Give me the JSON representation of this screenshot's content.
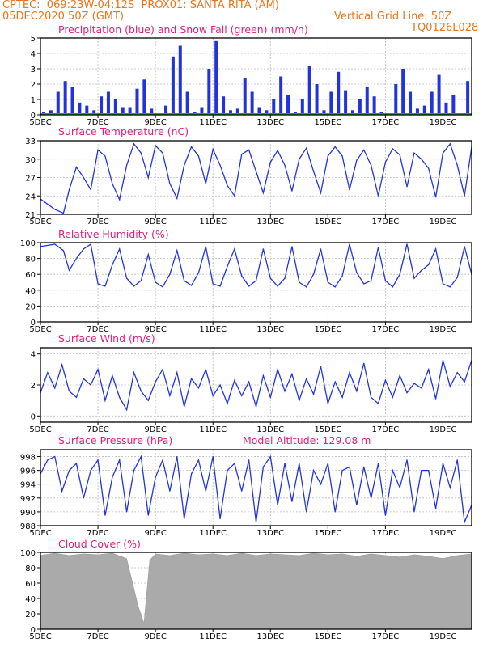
{
  "header": {
    "line1": "CPTEC:  069:23W-04:12S  PROX01: SANTA RITA (AM)",
    "line2_left": "05DEC2020 50Z (GMT)",
    "line2_right": "Vertical Grid Line: 50Z",
    "line3_right": "TQ0126L028"
  },
  "x_labels": [
    "5DEC",
    "7DEC",
    "9DEC",
    "11DEC",
    "13DEC",
    "15DEC",
    "17DEC",
    "19DEC"
  ],
  "colors": {
    "line": "#2233dd",
    "snow": "#22aa22",
    "cloud": "#aaaaaa",
    "title": "#e0207a",
    "header": "#e8751a"
  },
  "chart_data": [
    {
      "type": "bar",
      "id": "precip",
      "title": "Precipitation (blue) and Snow Fall (green) (mm/h)",
      "ylim": [
        0,
        5
      ],
      "yticks": [
        0,
        1,
        2,
        3,
        4,
        5
      ],
      "x_days": [
        0,
        0.25,
        0.5,
        0.75,
        1,
        1.25,
        1.5,
        1.75,
        2,
        2.25,
        2.5,
        2.75,
        3,
        3.25,
        3.5,
        3.75,
        4,
        4.25,
        4.5,
        4.75,
        5,
        5.25,
        5.5,
        5.75,
        6,
        6.25,
        6.5,
        6.75,
        7,
        7.25,
        7.5,
        7.75,
        8,
        8.25,
        8.5,
        8.75,
        9,
        9.25,
        9.5,
        9.75,
        10,
        10.25,
        10.5,
        10.75,
        11,
        11.25,
        11.5,
        11.75,
        12,
        12.25,
        12.5,
        12.75,
        13,
        13.25,
        13.5,
        13.75,
        14,
        14.25,
        14.5,
        14.75
      ],
      "values": [
        0.2,
        0.3,
        1.5,
        2.2,
        1.8,
        0.8,
        0.6,
        0.3,
        1.2,
        1.5,
        1.0,
        0.5,
        0.5,
        1.7,
        2.3,
        0.4,
        0,
        0.6,
        3.8,
        4.5,
        1.5,
        0.2,
        0.5,
        3.0,
        4.8,
        1.2,
        0.3,
        0.4,
        2.4,
        1.5,
        0.5,
        0.3,
        1.0,
        2.5,
        1.3,
        0.2,
        1.0,
        3.2,
        2.0,
        0.3,
        1.5,
        2.8,
        1.6,
        0.3,
        1.0,
        1.8,
        1.2,
        0.2,
        0,
        2.0,
        3.0,
        1.5,
        0.4,
        0.6,
        1.5,
        2.6,
        0.8,
        1.3,
        0,
        2.2
      ],
      "snow": [
        0,
        0,
        0,
        0,
        0,
        0,
        0,
        0,
        0,
        0,
        0,
        0,
        0,
        0,
        0,
        0,
        0,
        0,
        0,
        0,
        0,
        0,
        0,
        0,
        0,
        0,
        0,
        0,
        0,
        0,
        0,
        0,
        0,
        0,
        0,
        0,
        0,
        0,
        0,
        0,
        0,
        0,
        0,
        0,
        0,
        0,
        0,
        0,
        0,
        0,
        0,
        0,
        0,
        0,
        0,
        0,
        0,
        0,
        0,
        0
      ]
    },
    {
      "type": "line",
      "id": "temp",
      "title": "Surface Temperature (nC)",
      "ylim": [
        21,
        33
      ],
      "yticks": [
        21,
        24,
        27,
        30,
        33
      ],
      "x_days": [
        0,
        0.5,
        0.8,
        1,
        1.25,
        1.5,
        1.75,
        2,
        2.25,
        2.5,
        2.75,
        3,
        3.25,
        3.5,
        3.75,
        4,
        4.25,
        4.5,
        4.75,
        5,
        5.25,
        5.5,
        5.75,
        6,
        6.25,
        6.5,
        6.75,
        7,
        7.25,
        7.5,
        7.75,
        8,
        8.25,
        8.5,
        8.75,
        9,
        9.25,
        9.5,
        9.75,
        10,
        10.25,
        10.5,
        10.75,
        11,
        11.25,
        11.5,
        11.75,
        12,
        12.25,
        12.5,
        12.75,
        13,
        13.25,
        13.5,
        13.75,
        14,
        14.25,
        14.5,
        14.75,
        15
      ],
      "values": [
        23.5,
        21.8,
        21.2,
        25,
        28.7,
        27,
        25,
        31.5,
        30.5,
        26,
        23.4,
        29,
        32.5,
        31,
        27,
        32.2,
        31,
        26,
        23.6,
        29,
        32,
        30.5,
        26,
        31.6,
        29,
        25.7,
        24,
        30.8,
        31.5,
        28,
        24.5,
        29.5,
        31.4,
        29,
        24.8,
        30,
        31.8,
        28,
        24.5,
        30.5,
        32,
        30.5,
        25,
        29.8,
        31.5,
        29,
        24,
        29.5,
        31.7,
        30.7,
        25.5,
        31,
        30,
        28.5,
        23.8,
        31,
        32.5,
        29,
        24,
        32
      ]
    },
    {
      "type": "line",
      "id": "rh",
      "title": "Relative Humidity (%)",
      "ylim": [
        0,
        100
      ],
      "yticks": [
        0,
        20,
        40,
        60,
        80,
        100
      ],
      "x_days": [
        0,
        0.5,
        0.8,
        1,
        1.25,
        1.5,
        1.75,
        2,
        2.25,
        2.5,
        2.75,
        3,
        3.25,
        3.5,
        3.75,
        4,
        4.25,
        4.5,
        4.75,
        5,
        5.25,
        5.5,
        5.75,
        6,
        6.25,
        6.5,
        6.75,
        7,
        7.25,
        7.5,
        7.75,
        8,
        8.25,
        8.5,
        8.75,
        9,
        9.25,
        9.5,
        9.75,
        10,
        10.25,
        10.5,
        10.75,
        11,
        11.25,
        11.5,
        11.75,
        12,
        12.25,
        12.5,
        12.75,
        13,
        13.25,
        13.5,
        13.75,
        14,
        14.25,
        14.5,
        14.75,
        15
      ],
      "values": [
        95,
        98,
        90,
        65,
        80,
        92,
        98,
        48,
        45,
        72,
        92,
        55,
        45,
        52,
        85,
        50,
        44,
        60,
        90,
        52,
        46,
        62,
        95,
        48,
        45,
        70,
        92,
        58,
        45,
        52,
        92,
        55,
        45,
        55,
        95,
        50,
        44,
        60,
        92,
        50,
        44,
        58,
        98,
        62,
        48,
        52,
        94,
        52,
        44,
        60,
        98,
        55,
        65,
        72,
        92,
        48,
        44,
        56,
        95,
        60
      ]
    },
    {
      "type": "line",
      "id": "wind",
      "title": "Surface Wind (m/s)",
      "ylim": [
        -0.4,
        4.4
      ],
      "yticks": [
        0,
        2,
        4
      ],
      "x_days": [
        0,
        0.25,
        0.5,
        0.75,
        1,
        1.25,
        1.5,
        1.75,
        2,
        2.25,
        2.5,
        2.75,
        3,
        3.25,
        3.5,
        3.75,
        4,
        4.25,
        4.5,
        4.75,
        5,
        5.25,
        5.5,
        5.75,
        6,
        6.25,
        6.5,
        6.75,
        7,
        7.25,
        7.5,
        7.75,
        8,
        8.25,
        8.5,
        8.75,
        9,
        9.25,
        9.5,
        9.75,
        10,
        10.25,
        10.5,
        10.75,
        11,
        11.25,
        11.5,
        11.75,
        12,
        12.25,
        12.5,
        12.75,
        13,
        13.25,
        13.5,
        13.75,
        14,
        14.25,
        14.5,
        14.75,
        15
      ],
      "values": [
        1.5,
        2.8,
        1.8,
        3.3,
        1.6,
        1.2,
        2.4,
        2.0,
        3.0,
        1.0,
        2.6,
        1.2,
        0.4,
        2.8,
        1.6,
        1.0,
        2.2,
        3.0,
        1.3,
        2.8,
        0.6,
        2.4,
        1.8,
        3.0,
        1.3,
        2.0,
        0.8,
        2.3,
        1.3,
        2.2,
        0.6,
        2.6,
        1.2,
        3.0,
        1.6,
        2.7,
        1.0,
        2.4,
        1.4,
        3.2,
        0.8,
        2.2,
        1.2,
        2.8,
        1.6,
        3.4,
        1.2,
        0.8,
        2.3,
        1.2,
        2.6,
        1.5,
        2.1,
        1.8,
        3.0,
        1.1,
        3.6,
        1.9,
        2.8,
        2.2,
        3.6
      ]
    },
    {
      "type": "line",
      "id": "pres",
      "title": "Surface Pressure (hPa)",
      "annotation": "Model Altitude: 129.08 m",
      "ylim": [
        988,
        999
      ],
      "yticks": [
        988,
        990,
        992,
        994,
        996,
        998
      ],
      "x_days": [
        0,
        0.25,
        0.5,
        0.75,
        1,
        1.25,
        1.5,
        1.75,
        2,
        2.25,
        2.5,
        2.75,
        3,
        3.25,
        3.5,
        3.75,
        4,
        4.25,
        4.5,
        4.75,
        5,
        5.25,
        5.5,
        5.75,
        6,
        6.25,
        6.5,
        6.75,
        7,
        7.25,
        7.5,
        7.75,
        8,
        8.25,
        8.5,
        8.75,
        9,
        9.25,
        9.5,
        9.75,
        10,
        10.25,
        10.5,
        10.75,
        11,
        11.25,
        11.5,
        11.75,
        12,
        12.25,
        12.5,
        12.75,
        13,
        13.25,
        13.5,
        13.75,
        14,
        14.25,
        14.5,
        14.75,
        15
      ],
      "values": [
        995.5,
        997.5,
        998,
        993,
        996,
        997,
        992,
        996,
        997.5,
        989.5,
        995,
        997.5,
        990,
        996,
        998,
        989.5,
        995,
        997.5,
        993,
        998,
        989,
        995.5,
        997.5,
        993,
        998,
        989,
        996,
        997,
        993,
        997.5,
        988.5,
        996.5,
        998,
        991,
        997,
        991.5,
        997,
        990,
        996,
        994,
        997,
        990,
        996,
        996.5,
        991,
        996.5,
        992,
        997,
        989.5,
        996,
        993.5,
        997.5,
        990,
        996,
        996,
        990.5,
        997,
        993.5,
        997.5,
        988.5,
        991
      ]
    },
    {
      "type": "area",
      "id": "cloud",
      "title": "Cloud Cover (%)",
      "ylim": [
        0,
        100
      ],
      "yticks": [
        0,
        20,
        40,
        60,
        80,
        100
      ],
      "x_days": [
        0,
        0.5,
        1,
        1.5,
        2,
        2.5,
        3,
        3.4,
        3.6,
        3.8,
        4,
        4.5,
        5,
        5.5,
        6,
        6.5,
        7,
        7.5,
        8,
        8.5,
        9,
        9.5,
        10,
        10.5,
        11,
        11.5,
        12,
        12.5,
        13,
        13.5,
        14,
        14.5,
        15
      ],
      "values": [
        96,
        99,
        96,
        98,
        97,
        99,
        92,
        30,
        8,
        90,
        98,
        96,
        99,
        97,
        98,
        96,
        99,
        96,
        98,
        97,
        96,
        99,
        97,
        98,
        95,
        98,
        96,
        94,
        97,
        95,
        92,
        96,
        98
      ]
    }
  ]
}
